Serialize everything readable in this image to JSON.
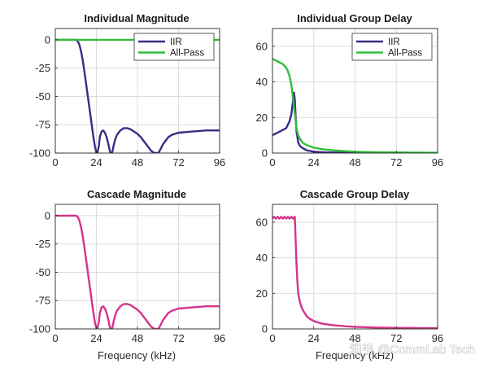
{
  "watermark": "知乎 @CommLab Tech",
  "colors": {
    "iir": "#3f2a85",
    "allpass": "#2fbf3a",
    "cascade": "#d6338a",
    "grid": "#dcdcdc",
    "axis": "#262626"
  },
  "chart_data": [
    {
      "id": "ind-mag",
      "type": "line",
      "title": "Individual Magnitude",
      "xlabel": "",
      "ylabel": "",
      "xlim": [
        0,
        96
      ],
      "ylim": [
        -100,
        10
      ],
      "xticks": [
        0,
        24,
        48,
        72,
        96
      ],
      "yticks": [
        0,
        -25,
        -50,
        -75,
        -100
      ],
      "grid": true,
      "legend": {
        "position": "top-right",
        "entries": [
          "IIR",
          "All-Pass"
        ]
      },
      "series": [
        {
          "name": "IIR",
          "color": "#3f2a85",
          "x": [
            0,
            12,
            13,
            14,
            15,
            16,
            17,
            18,
            19,
            20,
            21,
            22,
            23,
            24,
            24.5,
            25,
            25.5,
            26,
            27,
            28,
            29,
            30,
            31,
            32,
            33,
            33.5,
            34,
            35,
            36,
            38,
            40,
            42,
            44,
            46,
            48,
            50,
            52,
            54,
            56,
            58,
            60,
            61,
            62,
            63,
            64,
            66,
            68,
            70,
            72,
            76,
            80,
            84,
            88,
            92,
            96
          ],
          "y": [
            0,
            0,
            -1,
            -4,
            -10,
            -18,
            -28,
            -39,
            -50,
            -61,
            -72,
            -83,
            -93,
            -100,
            -100,
            -97,
            -93,
            -86,
            -81,
            -80,
            -82,
            -86,
            -92,
            -99,
            -100,
            -98,
            -94,
            -88,
            -84,
            -80,
            -78,
            -78,
            -79,
            -81,
            -83,
            -86,
            -90,
            -94,
            -98,
            -100,
            -100,
            -98,
            -95,
            -92,
            -90,
            -86,
            -84,
            -83,
            -82,
            -81.5,
            -81,
            -80.5,
            -80,
            -80,
            -80
          ]
        },
        {
          "name": "All-Pass",
          "color": "#2fbf3a",
          "x": [
            0,
            96
          ],
          "y": [
            0,
            0
          ]
        }
      ]
    },
    {
      "id": "ind-gd",
      "type": "line",
      "title": "Individual Group Delay",
      "xlabel": "",
      "ylabel": "",
      "xlim": [
        0,
        96
      ],
      "ylim": [
        0,
        70
      ],
      "xticks": [
        0,
        24,
        48,
        72,
        96
      ],
      "yticks": [
        0,
        20,
        40,
        60
      ],
      "grid": true,
      "legend": {
        "position": "top-right",
        "entries": [
          "IIR",
          "All-Pass"
        ]
      },
      "series": [
        {
          "name": "IIR",
          "color": "#3f2a85",
          "x": [
            0,
            2,
            4,
            6,
            8,
            10,
            11,
            12,
            12.5,
            13,
            13.5,
            14,
            15,
            16,
            18,
            20,
            24,
            30,
            36,
            48,
            60,
            72,
            84,
            96
          ],
          "y": [
            10,
            11,
            12,
            13,
            14,
            18,
            22,
            30,
            34,
            30,
            20,
            12,
            6,
            4,
            2.5,
            1.5,
            0.8,
            0.4,
            0.3,
            0.2,
            0.1,
            0.1,
            0.05,
            0.05
          ]
        },
        {
          "name": "All-Pass",
          "color": "#2fbf3a",
          "x": [
            0,
            1,
            2,
            4,
            6,
            8,
            9,
            10,
            11,
            12,
            13,
            14,
            15,
            16,
            17,
            18,
            20,
            22,
            24,
            27,
            30,
            36,
            42,
            48,
            60,
            72,
            84,
            96
          ],
          "y": [
            53,
            52.5,
            52,
            51,
            50,
            48,
            46,
            43,
            38,
            30,
            22,
            14,
            10,
            8,
            6.5,
            5.5,
            4.5,
            3.8,
            3,
            2.5,
            2,
            1.5,
            1.1,
            0.8,
            0.5,
            0.35,
            0.25,
            0.2
          ]
        }
      ]
    },
    {
      "id": "cas-mag",
      "type": "line",
      "title": "Cascade Magnitude",
      "xlabel": "Frequency (kHz)",
      "ylabel": "",
      "xlim": [
        0,
        96
      ],
      "ylim": [
        -100,
        10
      ],
      "xticks": [
        0,
        24,
        48,
        72,
        96
      ],
      "yticks": [
        0,
        -25,
        -50,
        -75,
        -100
      ],
      "grid": true,
      "legend": null,
      "series": [
        {
          "name": "Cascade",
          "color": "#d6338a",
          "x": [
            0,
            12,
            13,
            14,
            15,
            16,
            17,
            18,
            19,
            20,
            21,
            22,
            23,
            24,
            24.5,
            25,
            25.5,
            26,
            27,
            28,
            29,
            30,
            31,
            32,
            33,
            33.5,
            34,
            35,
            36,
            38,
            40,
            42,
            44,
            46,
            48,
            50,
            52,
            54,
            56,
            58,
            60,
            61,
            62,
            63,
            64,
            66,
            68,
            70,
            72,
            76,
            80,
            84,
            88,
            92,
            96
          ],
          "y": [
            0,
            0,
            -1,
            -4,
            -10,
            -18,
            -28,
            -39,
            -50,
            -61,
            -72,
            -83,
            -93,
            -100,
            -100,
            -97,
            -93,
            -86,
            -81,
            -80,
            -82,
            -86,
            -92,
            -99,
            -100,
            -98,
            -94,
            -88,
            -84,
            -80,
            -78,
            -78,
            -79,
            -81,
            -83,
            -86,
            -90,
            -94,
            -98,
            -100,
            -100,
            -98,
            -95,
            -92,
            -90,
            -86,
            -84,
            -83,
            -82,
            -81.5,
            -81,
            -80.5,
            -80,
            -80,
            -80
          ]
        }
      ]
    },
    {
      "id": "cas-gd",
      "type": "line",
      "title": "Cascade Group Delay",
      "xlabel": "Frequency (kHz)",
      "ylabel": "",
      "xlim": [
        0,
        96
      ],
      "ylim": [
        0,
        70
      ],
      "xticks": [
        0,
        24,
        48,
        72,
        96
      ],
      "yticks": [
        0,
        20,
        40,
        60
      ],
      "grid": true,
      "legend": null,
      "series": [
        {
          "name": "Cascade",
          "color": "#d6338a",
          "x": [
            0,
            1,
            2,
            3,
            4,
            5,
            6,
            7,
            8,
            9,
            10,
            11,
            12,
            13,
            13.5,
            14,
            14.5,
            15,
            16,
            17,
            18,
            19,
            20,
            22,
            24,
            27,
            30,
            36,
            42,
            48,
            60,
            72,
            84,
            96
          ],
          "y": [
            62,
            63,
            62,
            63,
            62,
            63,
            62,
            63,
            62,
            63,
            62,
            63,
            62,
            63,
            50,
            36,
            26,
            20,
            15,
            12,
            10,
            8.5,
            7,
            5.5,
            4.5,
            3.5,
            2.8,
            2,
            1.5,
            1.2,
            0.8,
            0.6,
            0.5,
            0.4
          ]
        }
      ]
    }
  ]
}
